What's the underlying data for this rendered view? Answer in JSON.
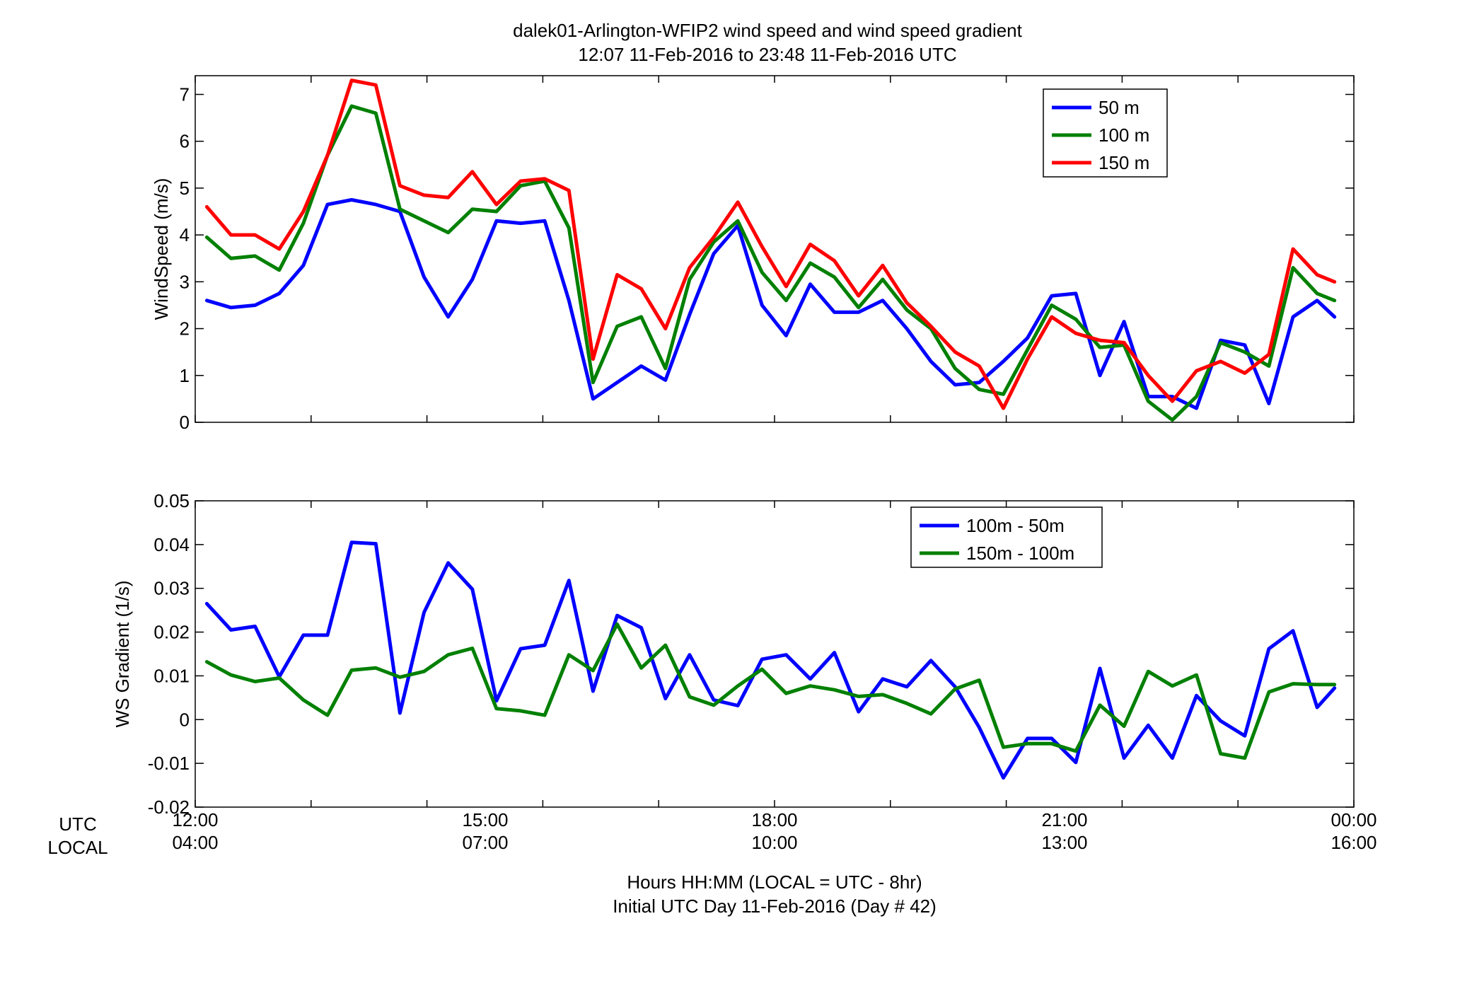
{
  "title": {
    "line1": "dalek01-Arlington-WFIP2  wind speed and wind speed gradient",
    "line2": "12:07 11-Feb-2016 to 23:48 11-Feb-2016  UTC"
  },
  "xaxis": {
    "row1_label": "UTC",
    "row2_label": "LOCAL",
    "ticks_utc": [
      "12:00",
      "15:00",
      "18:00",
      "21:00",
      "00:00"
    ],
    "ticks_local": [
      "04:00",
      "07:00",
      "10:00",
      "13:00",
      "16:00"
    ],
    "xlabel_line1": "Hours HH:MM  (LOCAL = UTC - 8hr)",
    "xlabel_line2": "Initial UTC Day 11-Feb-2016 (Day # 42)"
  },
  "chart_data": [
    {
      "type": "line",
      "ylabel": "WindSpeed (m/s)",
      "xlim": [
        12,
        24
      ],
      "ylim": [
        0,
        7.4
      ],
      "yticks": [
        0,
        1,
        2,
        3,
        4,
        5,
        6,
        7
      ],
      "legend_position": "top-right",
      "x": [
        12.12,
        12.37,
        12.62,
        12.87,
        13.12,
        13.37,
        13.62,
        13.87,
        14.12,
        14.37,
        14.62,
        14.87,
        15.12,
        15.37,
        15.62,
        15.87,
        16.12,
        16.37,
        16.62,
        16.87,
        17.12,
        17.37,
        17.62,
        17.87,
        18.12,
        18.37,
        18.62,
        18.87,
        19.12,
        19.37,
        19.62,
        19.87,
        20.12,
        20.37,
        20.62,
        20.87,
        21.12,
        21.37,
        21.62,
        21.87,
        22.12,
        22.37,
        22.62,
        22.87,
        23.12,
        23.37,
        23.62,
        23.8
      ],
      "series": [
        {
          "name": "50 m",
          "color": "#0000ff",
          "values": [
            2.6,
            2.45,
            2.5,
            2.75,
            3.35,
            4.65,
            4.75,
            4.65,
            4.5,
            3.1,
            2.25,
            3.05,
            4.3,
            4.25,
            4.3,
            2.6,
            0.5,
            0.85,
            1.2,
            0.9,
            2.3,
            3.6,
            4.2,
            2.5,
            1.85,
            2.95,
            2.35,
            2.35,
            2.6,
            2.0,
            1.3,
            0.8,
            0.85,
            1.3,
            1.8,
            2.7,
            2.75,
            1.0,
            2.15,
            0.55,
            0.55,
            0.3,
            1.75,
            1.65,
            0.4,
            2.25,
            2.6,
            2.25
          ]
        },
        {
          "name": "100 m",
          "color": "#008000",
          "values": [
            3.95,
            3.5,
            3.55,
            3.25,
            4.25,
            5.7,
            6.75,
            6.6,
            4.55,
            4.3,
            4.05,
            4.55,
            4.5,
            5.05,
            5.15,
            4.15,
            0.85,
            2.05,
            2.25,
            1.15,
            3.05,
            3.85,
            4.3,
            3.2,
            2.6,
            3.4,
            3.1,
            2.45,
            3.05,
            2.4,
            2.0,
            1.15,
            0.7,
            0.6,
            1.55,
            2.5,
            2.2,
            1.6,
            1.65,
            0.45,
            0.05,
            0.55,
            1.7,
            1.5,
            1.2,
            3.3,
            2.75,
            2.6
          ]
        },
        {
          "name": "150 m",
          "color": "#ff0000",
          "values": [
            4.6,
            4.0,
            4.0,
            3.7,
            4.5,
            5.7,
            7.3,
            7.2,
            5.05,
            4.85,
            4.8,
            5.35,
            4.65,
            5.15,
            5.2,
            4.95,
            1.35,
            3.15,
            2.85,
            2.0,
            3.3,
            3.95,
            4.7,
            3.75,
            2.9,
            3.8,
            3.45,
            2.7,
            3.35,
            2.55,
            2.05,
            1.5,
            1.2,
            0.3,
            1.35,
            2.25,
            1.9,
            1.75,
            1.7,
            1.0,
            0.45,
            1.1,
            1.3,
            1.05,
            1.45,
            3.7,
            3.15,
            3.0
          ]
        }
      ]
    },
    {
      "type": "line",
      "ylabel": "WS Gradient (1/s)",
      "xlim": [
        12,
        24
      ],
      "ylim": [
        -0.02,
        0.05
      ],
      "yticks": [
        -0.02,
        -0.01,
        0,
        0.01,
        0.02,
        0.03,
        0.04,
        0.05
      ],
      "ytick_labels": [
        "-0.02",
        "-0.01",
        "0",
        "0.01",
        "0.02",
        "0.03",
        "0.04",
        "0.05"
      ],
      "legend_position": "top-right",
      "x": [
        12.12,
        12.37,
        12.62,
        12.87,
        13.12,
        13.37,
        13.62,
        13.87,
        14.12,
        14.37,
        14.62,
        14.87,
        15.12,
        15.37,
        15.62,
        15.87,
        16.12,
        16.37,
        16.62,
        16.87,
        17.12,
        17.37,
        17.62,
        17.87,
        18.12,
        18.37,
        18.62,
        18.87,
        19.12,
        19.37,
        19.62,
        19.87,
        20.12,
        20.37,
        20.62,
        20.87,
        21.12,
        21.37,
        21.62,
        21.87,
        22.12,
        22.37,
        22.62,
        22.87,
        23.12,
        23.37,
        23.62,
        23.8
      ],
      "series": [
        {
          "name": "100m - 50m",
          "color": "#0000ff",
          "values": [
            0.0265,
            0.0205,
            0.0213,
            0.0098,
            0.0193,
            0.0193,
            0.0405,
            0.0402,
            0.0015,
            0.0245,
            0.0358,
            0.0298,
            0.0043,
            0.0162,
            0.017,
            0.0318,
            0.0065,
            0.0238,
            0.021,
            0.0048,
            0.0148,
            0.0045,
            0.0032,
            0.0138,
            0.0148,
            0.0093,
            0.0153,
            0.0018,
            0.0093,
            0.0075,
            0.0135,
            0.0075,
            -0.0018,
            -0.0133,
            -0.0043,
            -0.0043,
            -0.0098,
            0.0117,
            -0.0088,
            -0.0013,
            -0.0088,
            0.0055,
            -0.0003,
            -0.0037,
            0.0162,
            0.0203,
            0.0028,
            0.0072
          ]
        },
        {
          "name": "150m - 100m",
          "color": "#008000",
          "values": [
            0.0132,
            0.0102,
            0.0087,
            0.0095,
            0.0045,
            0.001,
            0.0113,
            0.0118,
            0.0097,
            0.011,
            0.0148,
            0.0163,
            0.0025,
            0.002,
            0.001,
            0.0148,
            0.0112,
            0.0218,
            0.0118,
            0.017,
            0.0052,
            0.0033,
            0.0077,
            0.0115,
            0.006,
            0.0077,
            0.0068,
            0.0053,
            0.0057,
            0.0037,
            0.0013,
            0.007,
            0.009,
            -0.0063,
            -0.0055,
            -0.0055,
            -0.0072,
            0.0033,
            -0.0015,
            0.011,
            0.0077,
            0.0102,
            -0.0078,
            -0.0088,
            0.0063,
            0.0082,
            0.008,
            0.008
          ]
        }
      ]
    }
  ]
}
